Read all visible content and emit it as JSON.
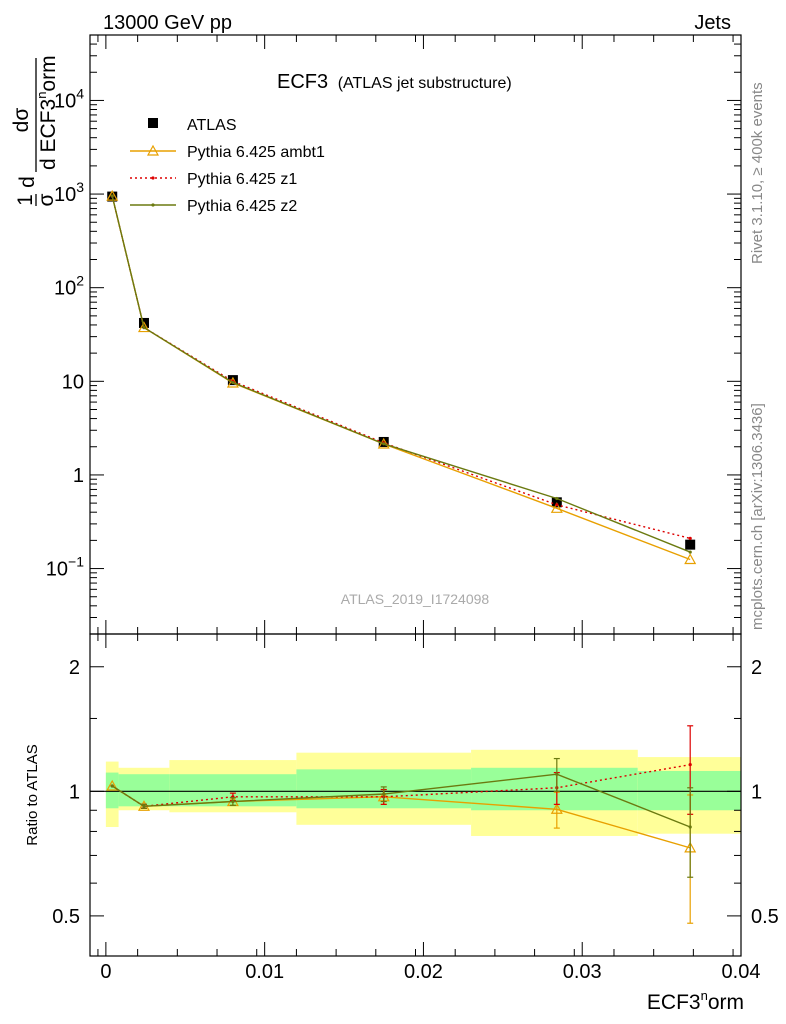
{
  "header": {
    "left": "13000 GeV pp",
    "right": "Jets"
  },
  "side": {
    "rivet": "Rivet 3.1.10, ≥ 400k events",
    "mcplots": "mcplots.cern.ch [arXiv:1306.3436]"
  },
  "title": {
    "main": "ECF3",
    "sub": "(ATLAS jet substructure)"
  },
  "watermark": "ATLAS_2019_I1724098",
  "ylabel_top": {
    "frac1_num": "1",
    "frac1_den": "σ",
    "frac1_d": "d",
    "frac2_num": "dσ",
    "frac2_den": "d ECF3",
    "frac2_sup": "n",
    "frac2_tail": "orm"
  },
  "xlabel": {
    "base": "ECF3",
    "sup": "n",
    "tail": "orm"
  },
  "ratio_ylabel": "Ratio to ATLAS",
  "legend": [
    {
      "label": "ATLAS",
      "color": "#000000",
      "style": "data"
    },
    {
      "label": "Pythia 6.425 ambt1",
      "color": "#e8a000",
      "style": "triangle"
    },
    {
      "label": "Pythia 6.425 z1",
      "color": "#dd0000",
      "style": "dotted"
    },
    {
      "label": "Pythia 6.425 z2",
      "color": "#6b7a10",
      "style": "line"
    }
  ],
  "top_ticks": {
    "labels": [
      "10^-1",
      "1",
      "10",
      "10^2",
      "10^3",
      "10^4"
    ]
  },
  "ratio_ticks": {
    "labels": [
      "0.5",
      "1",
      "2"
    ]
  },
  "x_ticks": {
    "labels": [
      "0",
      "0.01",
      "0.02",
      "0.03",
      "0.04"
    ]
  },
  "chart_data": [
    {
      "type": "line",
      "panel": "main",
      "xlim": [
        -0.001,
        0.04
      ],
      "ylim": [
        0.02,
        50000
      ],
      "yscale": "log",
      "bin_edges": [
        0.0,
        0.0008,
        0.004,
        0.012,
        0.023,
        0.0335,
        0.04
      ],
      "x": [
        0.0004,
        0.0024,
        0.008,
        0.0175,
        0.0284,
        0.0368
      ],
      "series": [
        {
          "name": "ATLAS",
          "values": [
            940,
            42,
            10.3,
            2.25,
            0.51,
            0.18
          ]
        },
        {
          "name": "Pythia 6.425 ambt1",
          "values": [
            950,
            37.5,
            9.6,
            2.14,
            0.44,
            0.125
          ]
        },
        {
          "name": "Pythia 6.425 z1",
          "values": [
            950,
            37.5,
            10.0,
            2.2,
            0.48,
            0.21
          ]
        },
        {
          "name": "Pythia 6.425 z2",
          "values": [
            955,
            37.5,
            9.7,
            2.15,
            0.56,
            0.15
          ]
        }
      ]
    },
    {
      "type": "line",
      "panel": "ratio",
      "xlim": [
        -0.001,
        0.04
      ],
      "ylim": [
        0.4,
        2.4
      ],
      "yscale": "log",
      "x": [
        0.0004,
        0.0024,
        0.008,
        0.0175,
        0.0284,
        0.0368
      ],
      "band_inner": [
        [
          0.91,
          1.11
        ],
        [
          0.92,
          1.1
        ],
        [
          0.92,
          1.1
        ],
        [
          0.91,
          1.13
        ],
        [
          0.9,
          1.14
        ],
        [
          0.9,
          1.12
        ]
      ],
      "band_outer": [
        [
          0.82,
          1.18
        ],
        [
          0.9,
          1.14
        ],
        [
          0.89,
          1.19
        ],
        [
          0.83,
          1.24
        ],
        [
          0.78,
          1.26
        ],
        [
          0.79,
          1.21
        ]
      ],
      "series": [
        {
          "name": "Pythia 6.425 ambt1",
          "values": [
            1.03,
            0.92,
            0.945,
            0.97,
            0.905,
            0.73
          ],
          "err": [
            0.0,
            0.01,
            0.02,
            0.04,
            0.09,
            0.25
          ]
        },
        {
          "name": "Pythia 6.425 z1",
          "values": [
            1.03,
            0.92,
            0.97,
            0.97,
            1.02,
            1.16
          ],
          "err": [
            0.0,
            0.01,
            0.02,
            0.04,
            0.09,
            0.28
          ]
        },
        {
          "name": "Pythia 6.425 z2",
          "values": [
            1.03,
            0.92,
            0.945,
            0.985,
            1.1,
            0.82
          ],
          "err": [
            0.0,
            0.01,
            0.02,
            0.04,
            0.1,
            0.2
          ]
        }
      ],
      "reference": 1
    }
  ]
}
